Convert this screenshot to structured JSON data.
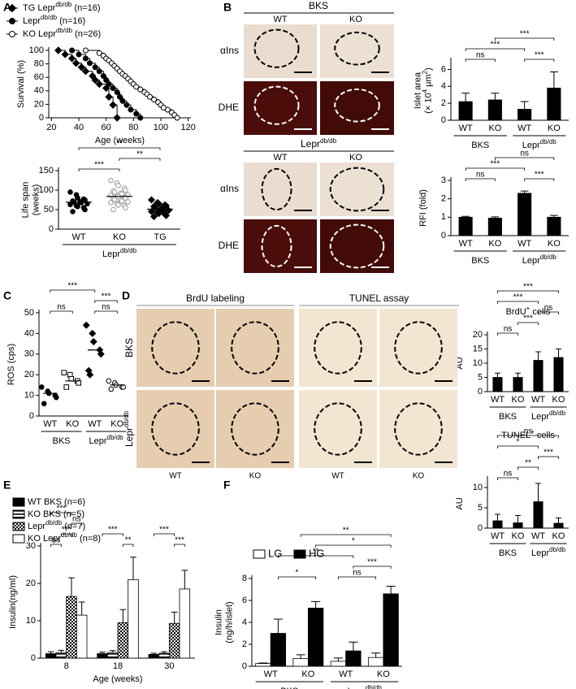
{
  "chart_data": [
    {
      "type": "line",
      "panel": "A",
      "xlabel": "Age (weeks)",
      "ylabel": [
        "Survival (%)"
      ],
      "xlim": [
        18,
        122
      ],
      "xticks": [
        20,
        40,
        60,
        80,
        100,
        120
      ],
      "ylim": [
        0,
        100
      ],
      "yticks": [
        0,
        20,
        40,
        60,
        80,
        100
      ],
      "series": [
        {
          "name": [
            "TG Lepr",
            "db/db",
            " (n=16)"
          ],
          "color": "#000000",
          "marker": "diamond",
          "filled": true,
          "x": [
            25,
            30,
            35,
            38,
            42,
            45,
            50,
            52,
            55,
            60,
            62,
            65,
            68
          ],
          "values": [
            100,
            94,
            88,
            81,
            75,
            69,
            62,
            56,
            50,
            44,
            31,
            19,
            0
          ]
        },
        {
          "name": [
            "Lepr",
            "db/db",
            " (n=16)"
          ],
          "color": "#000000",
          "marker": "circle",
          "filled": true,
          "x": [
            35,
            40,
            45,
            48,
            52,
            55,
            58,
            60,
            62,
            65,
            68,
            70,
            72,
            75,
            78,
            82,
            85
          ],
          "values": [
            100,
            94,
            88,
            81,
            75,
            69,
            62,
            56,
            50,
            44,
            38,
            31,
            25,
            19,
            12,
            6,
            0
          ]
        },
        {
          "name": [
            "KO Lepr",
            "db/db",
            " (n=26)"
          ],
          "color": "#000000",
          "marker": "circle",
          "filled": false,
          "x": [
            45,
            55,
            58,
            60,
            62,
            64,
            66,
            68,
            70,
            72,
            74,
            76,
            78,
            80,
            82,
            85,
            88,
            90,
            92,
            95,
            98,
            100,
            102,
            105,
            108,
            110,
            112
          ],
          "values": [
            100,
            96,
            92,
            88,
            85,
            81,
            77,
            73,
            69,
            65,
            62,
            58,
            54,
            50,
            46,
            42,
            38,
            35,
            31,
            27,
            23,
            19,
            15,
            12,
            8,
            4,
            0
          ]
        }
      ]
    },
    {
      "type": "scatter",
      "ylabel": [
        "Life span",
        "(weeks)"
      ],
      "ylim": [
        0,
        150
      ],
      "yticks": [
        0,
        50,
        100,
        150
      ],
      "categories": [
        "WT",
        "KO",
        "TG"
      ],
      "groups": [
        {
          "label": [
            "Lepr",
            "db/db"
          ],
          "span": [
            0,
            2
          ]
        }
      ],
      "markers": [
        {
          "shape": "circle",
          "filled": true,
          "color": "#000000"
        },
        {
          "shape": "circle",
          "filled": false,
          "color": "#999999"
        },
        {
          "shape": "diamond",
          "filled": true,
          "color": "#000000"
        }
      ],
      "values": [
        [
          95,
          88,
          80,
          77,
          75,
          72,
          70,
          70,
          68,
          65,
          63,
          60,
          58,
          55,
          50,
          45
        ],
        [
          125,
          118,
          112,
          105,
          100,
          98,
          95,
          92,
          90,
          88,
          86,
          85,
          84,
          82,
          80,
          78,
          76,
          75,
          72,
          70,
          68,
          65,
          62,
          60,
          55,
          50
        ],
        [
          75,
          68,
          65,
          62,
          60,
          58,
          55,
          52,
          50,
          48,
          45,
          42,
          40,
          38,
          35,
          32
        ]
      ],
      "means": [
        69,
        84,
        51
      ],
      "annotations": [
        {
          "text": "***",
          "from": 0,
          "to": 1
        },
        {
          "text": "**",
          "from": 1,
          "to": 2
        },
        {
          "text": "**",
          "from": 0,
          "to": 2
        }
      ]
    },
    {
      "type": "bar",
      "ylabel": [
        "Islet area",
        [
          "(× 10",
          "4",
          " μm",
          "2",
          ")"
        ]
      ],
      "ylim": [
        0,
        7
      ],
      "yticks": [
        0,
        2,
        4,
        6
      ],
      "categories": [
        "WT",
        "KO",
        "WT",
        "KO"
      ],
      "groups": [
        {
          "label": "BKS",
          "span": [
            0,
            1
          ]
        },
        {
          "label": [
            "Lepr",
            "db/db"
          ],
          "span": [
            2,
            3
          ]
        }
      ],
      "values": [
        2.2,
        2.4,
        1.3,
        3.8
      ],
      "errors": [
        1.0,
        0.8,
        0.9,
        1.9
      ],
      "color": "#000000",
      "annotations": [
        {
          "text": "ns",
          "from": 0,
          "to": 1
        },
        {
          "text": "***",
          "from": 2,
          "to": 3
        },
        {
          "text": "***",
          "from": 0,
          "to": 2
        },
        {
          "text": "***",
          "from": 1,
          "to": 3
        }
      ]
    },
    {
      "type": "bar",
      "ylabel": [
        "RFI (fold)"
      ],
      "ylim": [
        0,
        3
      ],
      "yticks": [
        0,
        1,
        2,
        3
      ],
      "categories": [
        "WT",
        "KO",
        "WT",
        "KO"
      ],
      "groups": [
        {
          "label": "BKS",
          "span": [
            0,
            1
          ]
        },
        {
          "label": [
            "Lepr",
            "db/db"
          ],
          "span": [
            2,
            3
          ]
        }
      ],
      "values": [
        1.0,
        0.95,
        2.3,
        1.0
      ],
      "errors": [
        0.05,
        0.07,
        0.12,
        0.1
      ],
      "color": "#000000",
      "annotations": [
        {
          "text": "***",
          "from": 0,
          "to": 2
        },
        {
          "text": "***",
          "from": 2,
          "to": 3
        },
        {
          "text": "ns",
          "from": 0,
          "to": 1
        },
        {
          "text": "ns",
          "from": 1,
          "to": 3
        }
      ]
    },
    {
      "type": "scatter",
      "panel": "C",
      "ylabel": [
        "ROS (cps)"
      ],
      "ylim": [
        0,
        50
      ],
      "yticks": [
        0,
        10,
        20,
        30,
        40,
        50
      ],
      "categories": [
        "WT",
        "KO",
        "WT",
        "KO"
      ],
      "groups": [
        {
          "label": "BKS",
          "span": [
            0,
            1
          ]
        },
        {
          "label": [
            "Lepr",
            "db/db"
          ],
          "span": [
            2,
            3
          ]
        }
      ],
      "markers": [
        {
          "shape": "circle",
          "filled": true,
          "color": "#000000"
        },
        {
          "shape": "square",
          "filled": false,
          "color": "#000000"
        },
        {
          "shape": "diamond",
          "filled": true,
          "color": "#000000"
        },
        {
          "shape": "circle",
          "filled": false,
          "color": "#000000"
        }
      ],
      "values": [
        [
          14,
          12,
          11,
          10,
          9,
          6
        ],
        [
          21,
          20,
          18,
          17,
          16,
          14
        ],
        [
          44,
          40,
          36,
          32,
          30,
          22,
          20
        ],
        [
          17,
          16,
          15,
          14,
          14,
          13
        ]
      ],
      "means": [
        11,
        17,
        32,
        15
      ],
      "annotations": [
        {
          "text": "ns",
          "from": 0,
          "to": 1
        },
        {
          "text": "ns",
          "from": 2,
          "to": 3
        },
        {
          "text": "***",
          "from": 0,
          "to": 2
        },
        {
          "text": "***",
          "from": 2,
          "to": 3
        }
      ]
    },
    {
      "type": "bar",
      "title": [
        "BrdU",
        "+",
        " cells"
      ],
      "ylabel": [
        "AU"
      ],
      "ylim": [
        0,
        20
      ],
      "yticks": [
        0,
        5,
        10,
        15,
        20
      ],
      "categories": [
        "WT",
        "KO",
        "WT",
        "KO"
      ],
      "groups": [
        {
          "label": "BKS",
          "span": [
            0,
            1
          ]
        },
        {
          "label": [
            "Lepr",
            "db/db"
          ],
          "span": [
            2,
            3
          ]
        }
      ],
      "values": [
        5,
        5,
        11,
        12
      ],
      "errors": [
        1.5,
        1.5,
        3,
        3
      ],
      "color": "#000000",
      "annotations": [
        {
          "text": "ns",
          "from": 0,
          "to": 1
        },
        {
          "text": "***",
          "from": 1,
          "to": 2
        },
        {
          "text": "ns",
          "from": 2,
          "to": 3
        },
        {
          "text": "***",
          "from": 0,
          "to": 2
        },
        {
          "text": "***",
          "from": 0,
          "to": 3
        }
      ]
    },
    {
      "type": "bar",
      "title": [
        "TUNEL",
        "+",
        " cells"
      ],
      "ylabel": [
        "AU"
      ],
      "ylim": [
        0,
        12
      ],
      "yticks": [
        0,
        5,
        10
      ],
      "categories": [
        "WT",
        "KO",
        "WT",
        "KO"
      ],
      "groups": [
        {
          "label": "BKS",
          "span": [
            0,
            1
          ]
        },
        {
          "label": [
            "Lepr",
            "db/db"
          ],
          "span": [
            2,
            3
          ]
        }
      ],
      "values": [
        1.8,
        1.3,
        6.5,
        1.2
      ],
      "errors": [
        1.6,
        1.8,
        4.5,
        1.3
      ],
      "color": "#000000",
      "annotations": [
        {
          "text": "ns",
          "from": 0,
          "to": 1
        },
        {
          "text": "**",
          "from": 1,
          "to": 2
        },
        {
          "text": "***",
          "from": 2,
          "to": 3
        },
        {
          "text": "*",
          "from": 0,
          "to": 2
        },
        {
          "text": "ns",
          "from": 0,
          "to": 3
        }
      ]
    },
    {
      "type": "bar",
      "panel": "E",
      "xlabel": "Age (weeks)",
      "ylabel": [
        "Insulin(ng/ml)"
      ],
      "ylim": [
        0,
        30
      ],
      "yticks": [
        0,
        10,
        20,
        30
      ],
      "categories": [
        "8",
        "18",
        "30"
      ],
      "series": [
        {
          "name": "WT BKS (n=6)",
          "color": "#000000",
          "pattern": "solid",
          "values": [
            1.2,
            1.2,
            1.0
          ],
          "errors": [
            0.5,
            0.4,
            0.3
          ]
        },
        {
          "name": "KO BKS (n=5)",
          "color": "#000000",
          "pattern": "hstripe",
          "values": [
            1.5,
            1.5,
            1.3
          ],
          "errors": [
            0.6,
            0.5,
            0.4
          ]
        },
        {
          "name": [
            "Lepr",
            "db/db",
            " (n=7)"
          ],
          "color": "#000000",
          "pattern": "checker",
          "values": [
            16.5,
            9.5,
            9.3
          ],
          "errors": [
            5,
            3.5,
            3
          ]
        },
        {
          "name": [
            "KO Lepr",
            "db/db",
            " (n=8)"
          ],
          "color": "#000000",
          "pattern": "none",
          "values": [
            11.5,
            21,
            18.5
          ],
          "errors": [
            3.5,
            6,
            5
          ]
        }
      ],
      "annotations": [
        {
          "text": "ns",
          "from": [
            0,
            0
          ],
          "to": [
            1,
            0
          ]
        },
        {
          "text": "***",
          "from": [
            1,
            0
          ],
          "to": [
            2,
            0
          ]
        },
        {
          "text": "***",
          "from": [
            0,
            0
          ],
          "to": [
            2,
            0
          ]
        },
        {
          "text": "ns",
          "from": [
            2,
            0
          ],
          "to": [
            3,
            0
          ]
        },
        {
          "text": "***",
          "from": [
            0,
            1
          ],
          "to": [
            2,
            1
          ]
        },
        {
          "text": "**",
          "from": [
            2,
            1
          ],
          "to": [
            3,
            1
          ]
        },
        {
          "text": "***",
          "from": [
            0,
            2
          ],
          "to": [
            2,
            2
          ]
        },
        {
          "text": "***",
          "from": [
            2,
            2
          ],
          "to": [
            3,
            2
          ]
        }
      ]
    },
    {
      "type": "bar",
      "panel": "F",
      "ylabel": [
        "Insulin",
        "(ng/h/islet)"
      ],
      "ylim": [
        0,
        8
      ],
      "yticks": [
        0,
        2,
        4,
        6,
        8
      ],
      "categories": [
        "WT",
        "KO",
        "WT",
        "KO"
      ],
      "groups": [
        {
          "label": "BKS",
          "span": [
            0,
            1
          ]
        },
        {
          "label": [
            "Lepr",
            "db/db"
          ],
          "span": [
            2,
            3
          ]
        }
      ],
      "series": [
        {
          "name": "LG",
          "color": "#000000",
          "pattern": "none",
          "values": [
            0.25,
            0.7,
            0.45,
            0.8
          ],
          "errors": [
            0.05,
            0.35,
            0.3,
            0.4
          ]
        },
        {
          "name": "HG",
          "color": "#000000",
          "pattern": "solid",
          "values": [
            3.0,
            5.3,
            1.4,
            6.6
          ],
          "errors": [
            1.3,
            0.6,
            0.8,
            0.7
          ]
        }
      ],
      "annotations": [
        {
          "text": "*",
          "from": [
            1,
            0
          ],
          "to": [
            1,
            1
          ]
        },
        {
          "text": "ns",
          "from": [
            0,
            2
          ],
          "to": [
            0,
            3
          ]
        },
        {
          "text": "***",
          "from": [
            1,
            2
          ],
          "to": [
            1,
            3
          ]
        },
        {
          "text": "**",
          "from": [
            1,
            0
          ],
          "to": [
            1,
            2
          ]
        },
        {
          "text": "*",
          "from": [
            1,
            1
          ],
          "to": [
            1,
            3
          ]
        },
        {
          "text": "**",
          "from": [
            0,
            1
          ],
          "to": [
            1,
            3
          ]
        }
      ]
    }
  ],
  "figure": {
    "B": {
      "panel": "B",
      "title": "BKS",
      "cols": [
        "WT",
        "KO"
      ],
      "rows": [
        "αIns",
        "DHE"
      ],
      "title2": [
        "Lepr",
        "db/db"
      ],
      "cols2": [
        "WT",
        "KO"
      ],
      "rows2": [
        "αIns",
        "DHE"
      ]
    },
    "D": {
      "panel": "D",
      "headers": [
        "BrdU labeling",
        "TUNEL assay"
      ],
      "rows": [
        "BKS",
        [
          "Lepr",
          "db/db"
        ]
      ],
      "cols": [
        "WT",
        "KO",
        "WT",
        "KO"
      ]
    }
  }
}
